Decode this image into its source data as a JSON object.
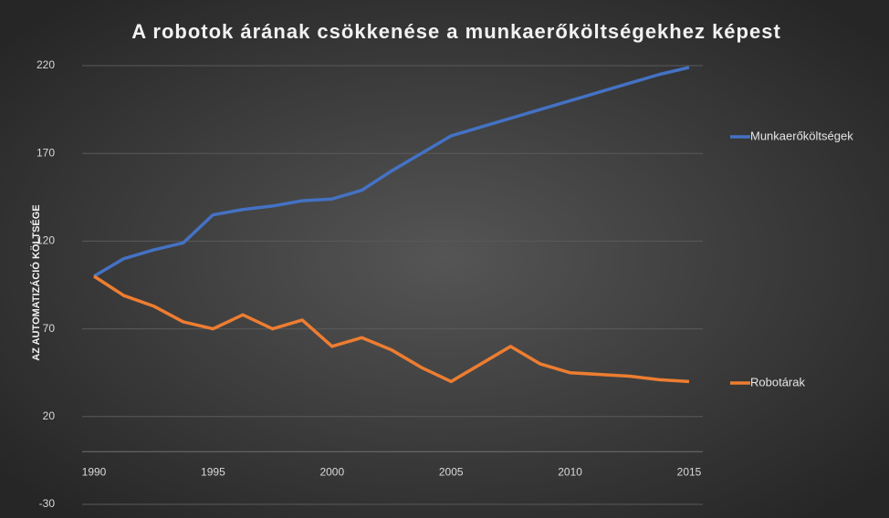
{
  "chart_data": {
    "type": "line",
    "title": "A robotok árának csökkenése a munkaerőköltségekhez képest",
    "y_label": "AZ AUTOMATIZÁCIÓ KÖLTSÉGE",
    "x": [
      1990,
      1991.25,
      1992.5,
      1993.75,
      1995,
      1996.25,
      1997.5,
      1998.75,
      2000,
      2001.25,
      2002.5,
      2003.75,
      2005,
      2006.25,
      2007.5,
      2008.75,
      2010,
      2011.25,
      2012.5,
      2013.75,
      2015
    ],
    "series": [
      {
        "name": "Munkaerőköltségek",
        "color": "#4472c4",
        "values": [
          100,
          110,
          115,
          119,
          135,
          138,
          140,
          143,
          144,
          149,
          160,
          170,
          180,
          185,
          190,
          195,
          200,
          205,
          210,
          215,
          219
        ]
      },
      {
        "name": "Robotárak",
        "color": "#ed7d31",
        "values": [
          100,
          89,
          83,
          74,
          70,
          78,
          70,
          75,
          60,
          65,
          58,
          48,
          40,
          50,
          60,
          50,
          45,
          44,
          43,
          41,
          40
        ]
      }
    ],
    "xlim": [
      1990,
      2015
    ],
    "xticks": [
      1990,
      1995,
      2000,
      2005,
      2010,
      2015
    ],
    "ylim": [
      -30,
      220
    ],
    "yticks": [
      -30,
      20,
      70,
      120,
      170,
      220
    ],
    "grid": true,
    "legend": "right"
  }
}
